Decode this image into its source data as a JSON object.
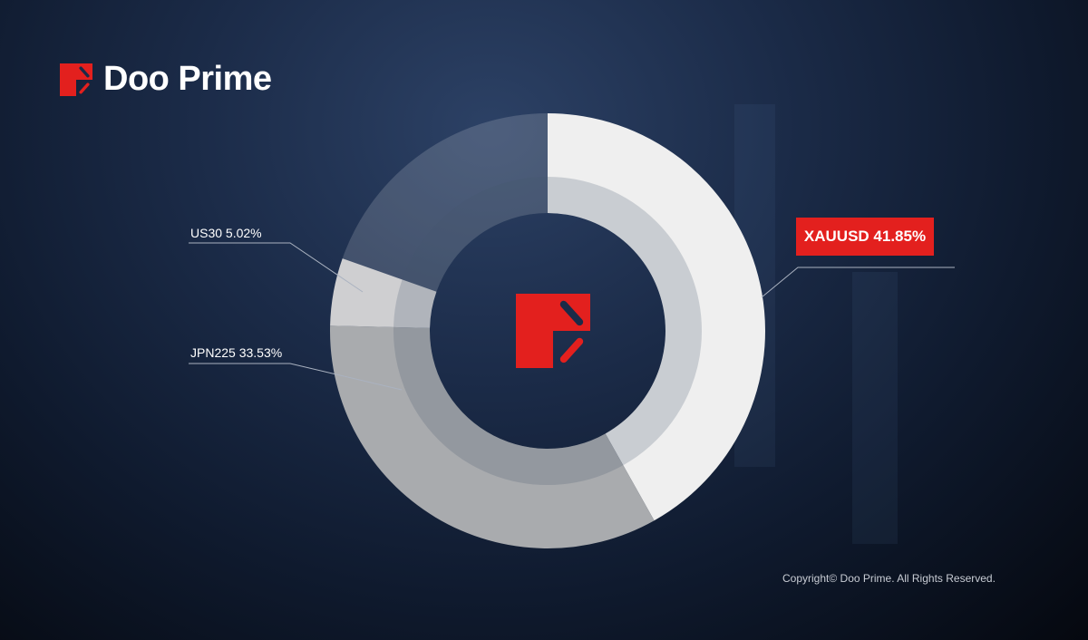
{
  "brand": {
    "name": "Doo Prime",
    "accent": "#e3201e"
  },
  "chart_data": {
    "type": "pie",
    "style": "donut",
    "start": "12 o'clock, clockwise",
    "slices": [
      {
        "label": "XAUUSD 41.85%",
        "name": "XAUUSD",
        "value": 41.85,
        "color": "#efefef"
      },
      {
        "label": "JPN225 33.53%",
        "name": "JPN225",
        "value": 33.53,
        "color": "#a9abae"
      },
      {
        "label": "US30 5.02%",
        "name": "US30",
        "value": 5.02,
        "color": "#cfcfd1"
      },
      {
        "label": "",
        "name": "",
        "value": 19.6,
        "color": "rgba(255,255,255,0.16)"
      }
    ]
  },
  "footer": {
    "copyright": "Copyright© Doo Prime. All Rights Reserved."
  }
}
